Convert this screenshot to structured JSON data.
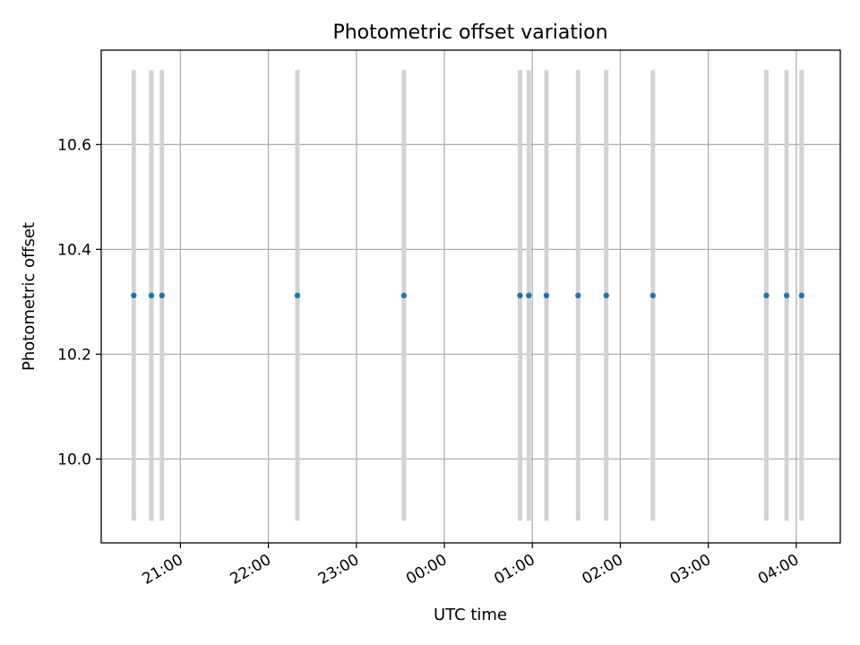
{
  "chart_data": {
    "type": "scatter",
    "title": "Photometric offset variation",
    "xlabel": "UTC time",
    "ylabel": "Photometric offset",
    "x_unit": "UTC hour of night (values past midnight exceed 24)",
    "xlim": [
      20.1,
      28.5
    ],
    "ylim": [
      9.84,
      10.78
    ],
    "grid": true,
    "legend": "none",
    "x_ticks": [
      {
        "value": 21,
        "label": "21:00"
      },
      {
        "value": 22,
        "label": "22:00"
      },
      {
        "value": 23,
        "label": "23:00"
      },
      {
        "value": 24,
        "label": "00:00"
      },
      {
        "value": 25,
        "label": "01:00"
      },
      {
        "value": 26,
        "label": "02:00"
      },
      {
        "value": 27,
        "label": "03:00"
      },
      {
        "value": 28,
        "label": "04:00"
      }
    ],
    "y_ticks": [
      {
        "value": 10.0,
        "label": "10.0"
      },
      {
        "value": 10.2,
        "label": "10.2"
      },
      {
        "value": 10.4,
        "label": "10.4"
      },
      {
        "value": 10.6,
        "label": "10.6"
      }
    ],
    "series": [
      {
        "color": "#1f77b4",
        "error_color": "#d3d3d3",
        "error": 0.43,
        "points": [
          {
            "x": 20.47,
            "y": 10.312
          },
          {
            "x": 20.67,
            "y": 10.312
          },
          {
            "x": 20.79,
            "y": 10.312
          },
          {
            "x": 22.33,
            "y": 10.312
          },
          {
            "x": 23.54,
            "y": 10.312
          },
          {
            "x": 24.86,
            "y": 10.312
          },
          {
            "x": 24.96,
            "y": 10.312
          },
          {
            "x": 25.16,
            "y": 10.312
          },
          {
            "x": 25.52,
            "y": 10.312
          },
          {
            "x": 25.84,
            "y": 10.312
          },
          {
            "x": 26.37,
            "y": 10.312
          },
          {
            "x": 27.66,
            "y": 10.312
          },
          {
            "x": 27.89,
            "y": 10.312
          },
          {
            "x": 28.06,
            "y": 10.312
          }
        ]
      }
    ]
  }
}
